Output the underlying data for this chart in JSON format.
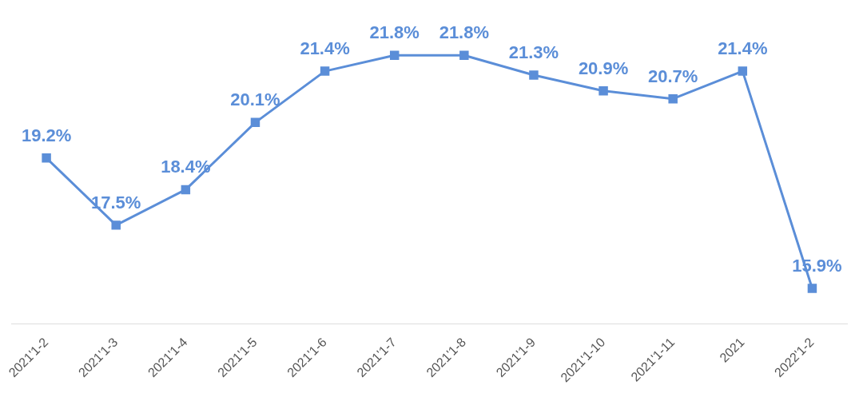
{
  "chart_data": {
    "type": "line",
    "categories": [
      "2021'1-2",
      "2021'1-3",
      "2021'1-4",
      "2021'1-5",
      "2021'1-6",
      "2021'1-7",
      "2021'1-8",
      "2021'1-9",
      "2021'1-10",
      "2021'1-11",
      "2021",
      "2022'1-2"
    ],
    "series": [
      {
        "color": "#5b8ed8",
        "values": [
          19.2,
          17.5,
          18.4,
          20.1,
          21.4,
          21.8,
          21.8,
          21.3,
          20.9,
          20.7,
          21.4,
          15.9
        ],
        "value_labels": [
          "19.2%",
          "17.5%",
          "18.4%",
          "20.1%",
          "21.4%",
          "21.8%",
          "21.8%",
          "21.3%",
          "20.9%",
          "20.7%",
          "21.4%",
          "15.9%"
        ]
      }
    ],
    "tick_labels": "x",
    "grid": false,
    "legend": false,
    "marker": "square",
    "line_style": "solid"
  }
}
